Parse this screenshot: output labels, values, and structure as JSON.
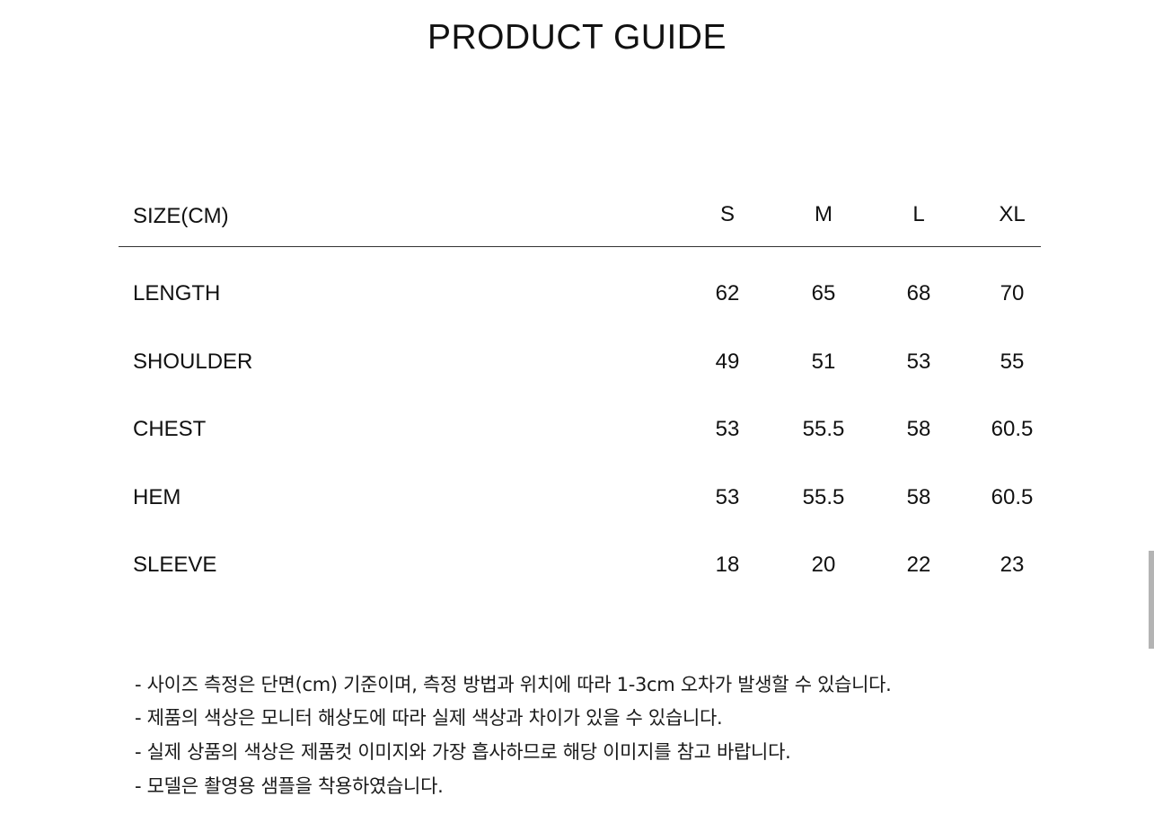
{
  "title": "PRODUCT GUIDE",
  "table": {
    "header_label": "SIZE(CM)",
    "sizes": [
      "S",
      "M",
      "L",
      "XL"
    ],
    "rows": [
      {
        "label": "LENGTH",
        "values": [
          "62",
          "65",
          "68",
          "70"
        ]
      },
      {
        "label": "SHOULDER",
        "values": [
          "49",
          "51",
          "53",
          "55"
        ]
      },
      {
        "label": "CHEST",
        "values": [
          "53",
          "55.5",
          "58",
          "60.5"
        ]
      },
      {
        "label": "HEM",
        "values": [
          "53",
          "55.5",
          "58",
          "60.5"
        ]
      },
      {
        "label": "SLEEVE",
        "values": [
          "18",
          "20",
          "22",
          "23"
        ]
      }
    ]
  },
  "notes": [
    "- 사이즈 측정은 단면(cm) 기준이며, 측정 방법과 위치에 따라 1-3cm 오차가 발생할 수 있습니다.",
    "- 제품의 색상은 모니터 해상도에 따라 실제 색상과 차이가 있을 수 있습니다.",
    "- 실제 상품의 색상은 제품컷 이미지와 가장 흡사하므로 해당 이미지를 참고 바랍니다.",
    "- 모델은 촬영용 샘플을 착용하였습니다."
  ]
}
